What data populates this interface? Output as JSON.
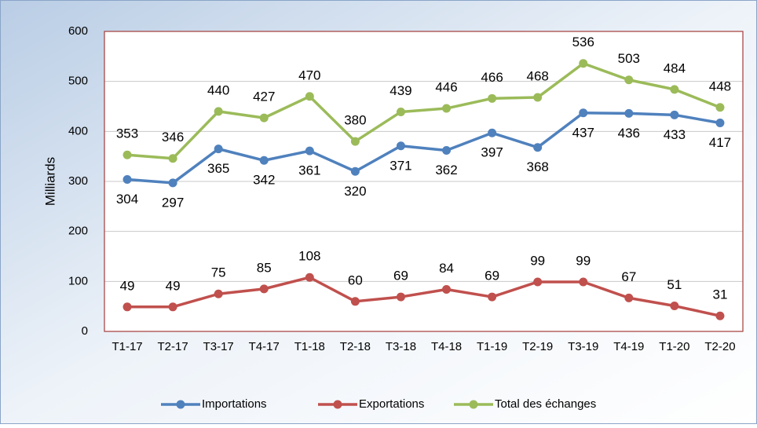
{
  "chart_data": {
    "type": "line",
    "y_label": "Milliards",
    "categories": [
      "T1-17",
      "T2-17",
      "T3-17",
      "T4-17",
      "T1-18",
      "T2-18",
      "T3-18",
      "T4-18",
      "T1-19",
      "T2-19",
      "T3-19",
      "T4-19",
      "T1-20",
      "T2-20"
    ],
    "series": [
      {
        "name": "Importations",
        "color": "#4f81bd",
        "values": [
          304,
          297,
          365,
          342,
          361,
          320,
          371,
          362,
          397,
          368,
          437,
          436,
          433,
          417
        ]
      },
      {
        "name": "Exportations",
        "color": "#c0504d",
        "values": [
          49,
          49,
          75,
          85,
          108,
          60,
          69,
          84,
          69,
          99,
          99,
          67,
          51,
          31
        ]
      },
      {
        "name": "Total des échanges",
        "color": "#9bbb59",
        "values": [
          353,
          346,
          440,
          427,
          470,
          380,
          439,
          446,
          466,
          468,
          536,
          503,
          484,
          448
        ]
      }
    ],
    "ylim": [
      0,
      600
    ],
    "yticks": [
      0,
      100,
      200,
      300,
      400,
      500,
      600
    ],
    "grid": true,
    "legend": "bottom"
  }
}
